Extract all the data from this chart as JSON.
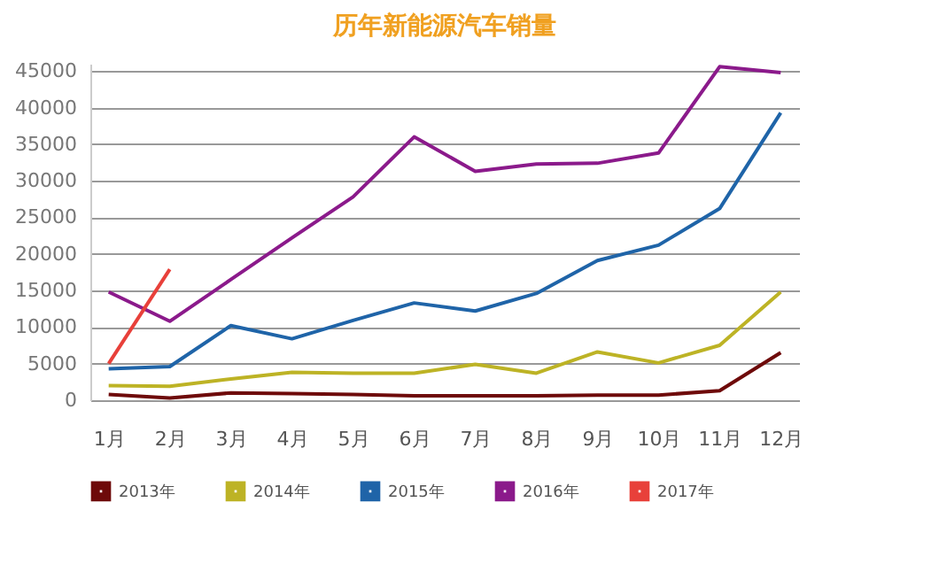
{
  "chart_data": {
    "type": "line",
    "title": "历年新能源汽车销量",
    "categories": [
      "1月",
      "2月",
      "3月",
      "4月",
      "5月",
      "6月",
      "7月",
      "8月",
      "9月",
      "10月",
      "11月",
      "12月"
    ],
    "series": [
      {
        "name": "2013年",
        "color": "#6e0a0a",
        "values": [
          800,
          300,
          1000,
          900,
          800,
          600,
          600,
          600,
          700,
          700,
          1300,
          6500
        ]
      },
      {
        "name": "2014年",
        "color": "#bdb325",
        "values": [
          2000,
          1900,
          2900,
          3800,
          3700,
          3700,
          4900,
          3700,
          6600,
          5100,
          7500,
          14800
        ]
      },
      {
        "name": "2015年",
        "color": "#1f64a8",
        "values": [
          4300,
          4600,
          10200,
          8400,
          10900,
          13300,
          12200,
          14600,
          19100,
          21200,
          26200,
          39300
        ]
      },
      {
        "name": "2016年",
        "color": "#8b1a8b",
        "values": [
          14800,
          10800,
          16500,
          22200,
          27800,
          36000,
          31300,
          32300,
          32400,
          33800,
          45600,
          44800
        ]
      },
      {
        "name": "2017年",
        "color": "#e8403a",
        "values": [
          5000,
          17900,
          null,
          null,
          null,
          null,
          null,
          null,
          null,
          null,
          null,
          null
        ]
      }
    ],
    "ylim": [
      0,
      46000
    ],
    "yticks": [
      0,
      5000,
      10000,
      15000,
      20000,
      25000,
      30000,
      35000,
      40000,
      45000
    ],
    "grid": "y",
    "legend": "bottom",
    "marker": "none",
    "line_style": "solid"
  }
}
